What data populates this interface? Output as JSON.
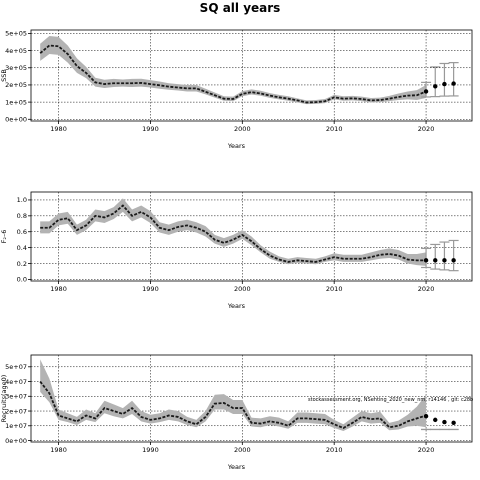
{
  "figure": {
    "title": "SQ all years",
    "annotation": "stockassessment.org, NSehting_2020_new_nm, r14146 , git: c28b"
  },
  "colors": {
    "band": "#b3b3b3",
    "line": "#1a1a1a",
    "forecast": "#000000",
    "forecast_bar": "#999999"
  },
  "chart_data": [
    {
      "type": "line",
      "ylabel": "SSB",
      "xlabel": "Years",
      "xlim": [
        1977,
        2025
      ],
      "ylim": [
        -10000,
        520000
      ],
      "xticks": [
        1980,
        1990,
        2000,
        2010,
        2020
      ],
      "xtick_labels": [
        "1980",
        "1990",
        "2000",
        "2010",
        "2020"
      ],
      "yticks": [
        0,
        100000,
        200000,
        300000,
        400000,
        500000
      ],
      "ytick_labels": [
        "0e+00",
        "1e+05",
        "2e+05",
        "3e+05",
        "4e+05",
        "5e+05"
      ],
      "grid": true,
      "x": [
        1978,
        1979,
        1980,
        1981,
        1982,
        1983,
        1984,
        1985,
        1986,
        1987,
        1988,
        1989,
        1990,
        1991,
        1992,
        1993,
        1994,
        1995,
        1996,
        1997,
        1998,
        1999,
        2000,
        2001,
        2002,
        2003,
        2004,
        2005,
        2006,
        2007,
        2008,
        2009,
        2010,
        2011,
        2012,
        2013,
        2014,
        2015,
        2016,
        2017,
        2018,
        2019,
        2020
      ],
      "estimate": [
        385000,
        430000,
        425000,
        380000,
        310000,
        270000,
        215000,
        205000,
        210000,
        210000,
        210000,
        212000,
        205000,
        198000,
        190000,
        185000,
        180000,
        180000,
        160000,
        140000,
        120000,
        118000,
        148000,
        158000,
        150000,
        138000,
        128000,
        120000,
        110000,
        98000,
        100000,
        105000,
        128000,
        120000,
        122000,
        118000,
        110000,
        112000,
        120000,
        130000,
        138000,
        140000,
        162000
      ],
      "lower": [
        340000,
        380000,
        375000,
        330000,
        270000,
        240000,
        190000,
        182000,
        188000,
        190000,
        188000,
        190000,
        185000,
        178000,
        172000,
        168000,
        162000,
        162000,
        145000,
        126000,
        108000,
        106000,
        134000,
        144000,
        137000,
        125000,
        116000,
        108000,
        98000,
        88000,
        90000,
        94000,
        116000,
        108000,
        110000,
        106000,
        98000,
        100000,
        106000,
        112000,
        116000,
        112000,
        125000
      ],
      "upper": [
        440000,
        485000,
        480000,
        430000,
        355000,
        305000,
        242000,
        230000,
        235000,
        232000,
        235000,
        236000,
        228000,
        220000,
        210000,
        205000,
        200000,
        200000,
        178000,
        156000,
        134000,
        132000,
        164000,
        174000,
        166000,
        152000,
        142000,
        134000,
        122000,
        110000,
        112000,
        118000,
        142000,
        134000,
        136000,
        132000,
        124000,
        126000,
        136000,
        150000,
        162000,
        170000,
        200000
      ],
      "forecast_years": [
        2020,
        2021,
        2022,
        2023
      ],
      "forecast_values": [
        162000,
        192000,
        205000,
        208000
      ],
      "forecast_lower": [
        130000,
        132000,
        135000,
        136000
      ],
      "forecast_upper": [
        215000,
        305000,
        325000,
        330000
      ]
    },
    {
      "type": "line",
      "ylabel": "F₂–6",
      "xlabel": "Years",
      "xlim": [
        1977,
        2025
      ],
      "ylim": [
        -0.02,
        1.1
      ],
      "xticks": [
        1980,
        1990,
        2000,
        2010,
        2020
      ],
      "xtick_labels": [
        "1980",
        "1990",
        "2000",
        "2010",
        "2020"
      ],
      "yticks": [
        0.0,
        0.2,
        0.4,
        0.6,
        0.8,
        1.0
      ],
      "ytick_labels": [
        "0.0",
        "0.2",
        "0.4",
        "0.6",
        "0.8",
        "1.0"
      ],
      "grid": true,
      "x": [
        1978,
        1979,
        1980,
        1981,
        1982,
        1983,
        1984,
        1985,
        1986,
        1987,
        1988,
        1989,
        1990,
        1991,
        1992,
        1993,
        1994,
        1995,
        1996,
        1997,
        1998,
        1999,
        2000,
        2001,
        2002,
        2003,
        2004,
        2005,
        2006,
        2007,
        2008,
        2009,
        2010,
        2011,
        2012,
        2013,
        2014,
        2015,
        2016,
        2017,
        2018,
        2019,
        2020
      ],
      "estimate": [
        0.65,
        0.65,
        0.75,
        0.77,
        0.62,
        0.68,
        0.8,
        0.78,
        0.83,
        0.93,
        0.8,
        0.85,
        0.78,
        0.65,
        0.62,
        0.66,
        0.68,
        0.65,
        0.6,
        0.5,
        0.46,
        0.5,
        0.56,
        0.48,
        0.38,
        0.3,
        0.25,
        0.22,
        0.24,
        0.23,
        0.22,
        0.25,
        0.28,
        0.26,
        0.26,
        0.26,
        0.28,
        0.31,
        0.32,
        0.3,
        0.25,
        0.24,
        0.24
      ],
      "lower": [
        0.58,
        0.58,
        0.68,
        0.7,
        0.56,
        0.62,
        0.73,
        0.71,
        0.76,
        0.85,
        0.73,
        0.78,
        0.71,
        0.59,
        0.56,
        0.6,
        0.62,
        0.59,
        0.54,
        0.45,
        0.41,
        0.45,
        0.51,
        0.43,
        0.34,
        0.26,
        0.22,
        0.19,
        0.21,
        0.2,
        0.19,
        0.22,
        0.24,
        0.22,
        0.22,
        0.22,
        0.24,
        0.26,
        0.27,
        0.25,
        0.2,
        0.18,
        0.17
      ],
      "upper": [
        0.73,
        0.73,
        0.83,
        0.85,
        0.69,
        0.75,
        0.88,
        0.86,
        0.91,
        1.02,
        0.88,
        0.93,
        0.86,
        0.72,
        0.69,
        0.73,
        0.75,
        0.72,
        0.67,
        0.56,
        0.52,
        0.56,
        0.62,
        0.54,
        0.43,
        0.35,
        0.29,
        0.26,
        0.28,
        0.27,
        0.26,
        0.29,
        0.33,
        0.31,
        0.31,
        0.31,
        0.34,
        0.37,
        0.39,
        0.37,
        0.32,
        0.32,
        0.34
      ],
      "forecast_years": [
        2020,
        2021,
        2022,
        2023
      ],
      "forecast_values": [
        0.24,
        0.24,
        0.24,
        0.24
      ],
      "forecast_lower": [
        0.15,
        0.13,
        0.12,
        0.11
      ],
      "forecast_upper": [
        0.39,
        0.44,
        0.47,
        0.49
      ]
    },
    {
      "type": "line",
      "ylabel": "Recruits(age0)",
      "xlabel": "Years",
      "xlim": [
        1977,
        2025
      ],
      "ylim": [
        -1000000,
        58000000
      ],
      "xticks": [
        1980,
        1990,
        2000,
        2010,
        2020
      ],
      "xtick_labels": [
        "1980",
        "1990",
        "2000",
        "2010",
        "2020"
      ],
      "yticks": [
        0,
        10000000,
        20000000,
        30000000,
        40000000,
        50000000
      ],
      "ytick_labels": [
        "0e+00",
        "1e+07",
        "2e+07",
        "3e+07",
        "4e+07",
        "5e+07"
      ],
      "grid": true,
      "x": [
        1978,
        1979,
        1980,
        1981,
        1982,
        1983,
        1984,
        1985,
        1986,
        1987,
        1988,
        1989,
        1990,
        1991,
        1992,
        1993,
        1994,
        1995,
        1996,
        1997,
        1998,
        1999,
        2000,
        2001,
        2002,
        2003,
        2004,
        2005,
        2006,
        2007,
        2008,
        2009,
        2010,
        2011,
        2012,
        2013,
        2014,
        2015,
        2016,
        2017,
        2018,
        2019,
        2020
      ],
      "estimate": [
        40000000,
        32000000,
        17000000,
        15000000,
        13000000,
        17000000,
        15000000,
        22000000,
        20000000,
        18000000,
        22000000,
        16000000,
        14000000,
        15000000,
        17000000,
        16000000,
        13000000,
        11000000,
        16000000,
        25000000,
        25500000,
        22000000,
        22000000,
        12000000,
        11500000,
        13000000,
        12000000,
        10000000,
        15000000,
        15000000,
        14500000,
        14000000,
        11000000,
        8500000,
        12000000,
        16000000,
        14500000,
        15000000,
        9000000,
        10000000,
        13000000,
        15000000,
        17000000
      ],
      "lower": [
        33000000,
        26000000,
        14000000,
        12500000,
        10500000,
        14000000,
        12500000,
        18500000,
        16500000,
        15000000,
        18000000,
        13000000,
        11500000,
        12500000,
        14000000,
        13000000,
        10500000,
        9000000,
        13000000,
        21000000,
        21000000,
        18000000,
        18000000,
        9500000,
        9000000,
        10500000,
        9500000,
        8000000,
        12000000,
        12000000,
        11500000,
        11000000,
        8500000,
        6500000,
        9500000,
        13000000,
        11500000,
        12000000,
        7000000,
        7500000,
        9500000,
        10000000,
        9000000
      ],
      "upper": [
        55000000,
        42000000,
        21000000,
        18500000,
        16000000,
        21000000,
        18500000,
        27000000,
        24500000,
        22000000,
        27000000,
        20000000,
        17500000,
        18500000,
        21000000,
        20000000,
        16000000,
        14000000,
        20000000,
        31000000,
        31500000,
        27500000,
        27500000,
        15500000,
        15000000,
        16500000,
        15500000,
        13000000,
        19000000,
        19000000,
        18500000,
        18000000,
        14000000,
        11000000,
        15500000,
        20000000,
        18500000,
        19500000,
        12000000,
        13500000,
        17500000,
        23000000,
        31000000
      ],
      "forecast_years": [
        2020,
        2021,
        2022,
        2023
      ],
      "forecast_values": [
        16500000,
        14000000,
        12500000,
        12000000
      ],
      "forecast_lower": [
        7500000,
        7500000,
        7500000,
        7500000
      ],
      "forecast_upper": [
        7500000,
        7500000,
        7500000,
        7500000
      ]
    }
  ]
}
